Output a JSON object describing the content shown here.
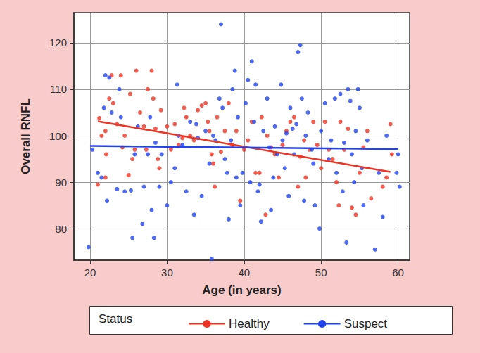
{
  "chart_data": {
    "type": "scatter",
    "x_label": "Age (in years)",
    "y_label": "Overall RNFL",
    "legend_title": "Status",
    "legend": "bottom",
    "grid": true,
    "xlim": [
      17.9,
      61.5
    ],
    "xticks": [
      20,
      30,
      40,
      50,
      60
    ],
    "ylim": [
      73.2,
      126.5
    ],
    "yticks": [
      80,
      90,
      100,
      110,
      120
    ],
    "series": [
      {
        "name": "Healthy",
        "color": "#ee3322",
        "marker": "circle",
        "fit": [
          [
            21,
            103.1
          ],
          [
            59,
            92.2
          ]
        ],
        "x": [
          21,
          21.2,
          21.5,
          22,
          22,
          22.1,
          22.5,
          22.8,
          23,
          23.5,
          24,
          24.2,
          24.5,
          25,
          25.2,
          25.5,
          25.8,
          26,
          26.5,
          27,
          27.3,
          27.5,
          28,
          28.2,
          28.5,
          28.8,
          29,
          29.2,
          30,
          30.5,
          31,
          31.5,
          32,
          32.2,
          32.5,
          33,
          33.5,
          34,
          34.5,
          35,
          35.3,
          35.5,
          35.8,
          36,
          36.2,
          36.5,
          37,
          37.5,
          38,
          38.5,
          39,
          39.5,
          40,
          40.5,
          41,
          41.5,
          42,
          42.3,
          42.8,
          43,
          43.5,
          44,
          44.5,
          45,
          45.5,
          46,
          46.5,
          47,
          47.3,
          47.8,
          48,
          48.5,
          49,
          49.5,
          50,
          50.5,
          51,
          51.5,
          52,
          52.3,
          52.5,
          53,
          53.5,
          54,
          54.5,
          55,
          55.5,
          56,
          56.5,
          58,
          58.5,
          59,
          59.2
        ],
        "values": [
          89.5,
          103.8,
          100,
          101,
          91,
          96,
          108,
          113,
          107,
          102.5,
          113,
          97.5,
          100,
          91.5,
          109,
          95,
          97,
          114,
          105,
          102,
          97,
          110,
          114,
          108,
          101.5,
          95,
          93,
          105.5,
          102,
          97,
          102.5,
          98,
          99.5,
          106,
          104,
          100,
          99,
          105.5,
          106.5,
          107,
          103,
          101,
          96,
          94,
          89,
          104,
          96.5,
          101,
          107,
          98,
          101,
          86,
          97,
          99,
          103,
          92,
          92,
          104,
          83,
          100,
          97.5,
          96,
          91,
          98,
          101,
          103,
          104,
          89,
          95.5,
          99,
          91,
          97,
          103,
          98,
          93,
          103,
          97,
          95,
          90,
          85,
          103,
          97,
          101.5,
          84.5,
          83,
          92,
          97.5,
          101,
          86.5,
          89,
          91,
          102.5,
          96
        ]
      },
      {
        "name": "Suspect",
        "color": "#2244ee",
        "marker": "circle",
        "fit": [
          [
            20,
            97.8
          ],
          [
            60,
            97.1
          ]
        ],
        "x": [
          19.8,
          20.3,
          21,
          21.5,
          21.8,
          22,
          22.2,
          22.5,
          22.8,
          23.5,
          23.8,
          24,
          24.5,
          25.3,
          25.5,
          25.8,
          26.2,
          26.8,
          27,
          27.5,
          27.8,
          28,
          28.3,
          28.5,
          29,
          29.3,
          30,
          30.5,
          31,
          31.3,
          31.5,
          32,
          32.5,
          33,
          33.5,
          33.8,
          34,
          34.5,
          35,
          35.5,
          35.8,
          36,
          36.3,
          36.8,
          37,
          37.2,
          37.5,
          37.8,
          38,
          38.3,
          38.5,
          38.8,
          39,
          39.2,
          39.5,
          39.8,
          40.2,
          40.5,
          40.8,
          41,
          41.3,
          41.5,
          41.8,
          42,
          42.2,
          42.5,
          43,
          43.3,
          43.5,
          43.8,
          44,
          44.3,
          44.8,
          45,
          45.3,
          45.5,
          45.8,
          46,
          46.3,
          46.5,
          46.8,
          47,
          47.3,
          47.5,
          47.8,
          48,
          48.3,
          48.8,
          49,
          49.2,
          49.8,
          50,
          50.5,
          51,
          51.3,
          51.8,
          52,
          52.5,
          52.8,
          53,
          53.3,
          53.5,
          53.8,
          54,
          54.3,
          54.5,
          54.8,
          55,
          55.3,
          55.5,
          56,
          57,
          57.5,
          58,
          58.5,
          59.8,
          60,
          60.2
        ],
        "values": [
          76,
          97,
          92,
          91,
          106,
          113,
          86,
          112.5,
          105,
          88.5,
          110,
          104,
          88,
          88.2,
          78,
          96,
          102,
          81,
          89,
          96,
          104,
          84,
          78,
          98.5,
          89,
          96,
          85,
          90,
          93,
          111,
          100,
          98,
          88,
          103,
          83,
          102.5,
          99.5,
          87,
          101,
          94,
          73.5,
          100,
          99,
          108,
          124,
          106,
          95,
          92,
          82,
          99,
          110,
          114,
          91,
          104,
          85,
          92,
          107,
          112,
          90,
          116,
          103,
          111,
          88,
          89.5,
          81.5,
          101,
          108,
          97.5,
          84,
          91,
          102,
          96,
          111,
          99,
          93,
          100.5,
          87,
          106,
          101.5,
          96,
          102.5,
          118,
          119.5,
          108,
          86,
          100,
          105,
          97,
          94,
          85,
          80,
          101,
          107,
          95,
          99,
          108,
          92,
          109,
          88,
          98.5,
          77,
          110,
          107.5,
          96,
          90,
          101,
          110,
          106,
          93,
          85,
          99,
          75.5,
          92,
          82.5,
          100,
          92,
          96,
          89
        ]
      }
    ]
  }
}
